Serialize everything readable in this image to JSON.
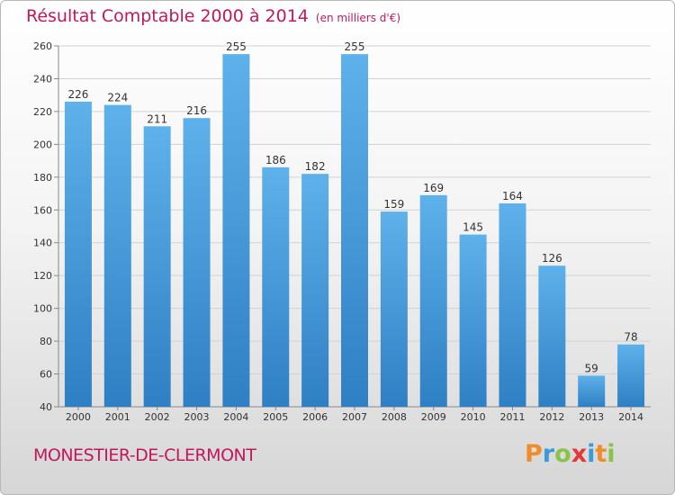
{
  "header": {
    "title": "Résultat Comptable 2000 à 2014",
    "unit": "(en milliers d'€)"
  },
  "footer": {
    "commune": "MONESTIER-DE-CLERMONT",
    "logo_letters": [
      "P",
      "r",
      "o",
      "x",
      "i",
      "t",
      "i"
    ],
    "logo_colors": [
      "#f28c28",
      "#3a9bd9",
      "#8bc34a",
      "#e53935",
      "#3a9bd9",
      "#f28c28",
      "#8bc34a"
    ]
  },
  "colors": {
    "title": "#c2185b",
    "bar_top": "#5eb1ea",
    "bar_bottom": "#2f7fc4",
    "axis_text": "#333333"
  },
  "chart_data": {
    "type": "bar",
    "title": "Résultat Comptable 2000 à 2014",
    "xlabel": "",
    "ylabel": "",
    "categories": [
      "2000",
      "2001",
      "2002",
      "2003",
      "2004",
      "2005",
      "2006",
      "2007",
      "2008",
      "2009",
      "2010",
      "2011",
      "2012",
      "2013",
      "2014"
    ],
    "values": [
      226,
      224,
      211,
      216,
      255,
      186,
      182,
      255,
      159,
      169,
      145,
      164,
      126,
      59,
      78
    ],
    "ylim": [
      40,
      260
    ],
    "yticks": [
      40,
      60,
      80,
      100,
      120,
      140,
      160,
      180,
      200,
      220,
      240,
      260
    ],
    "grid": true
  }
}
